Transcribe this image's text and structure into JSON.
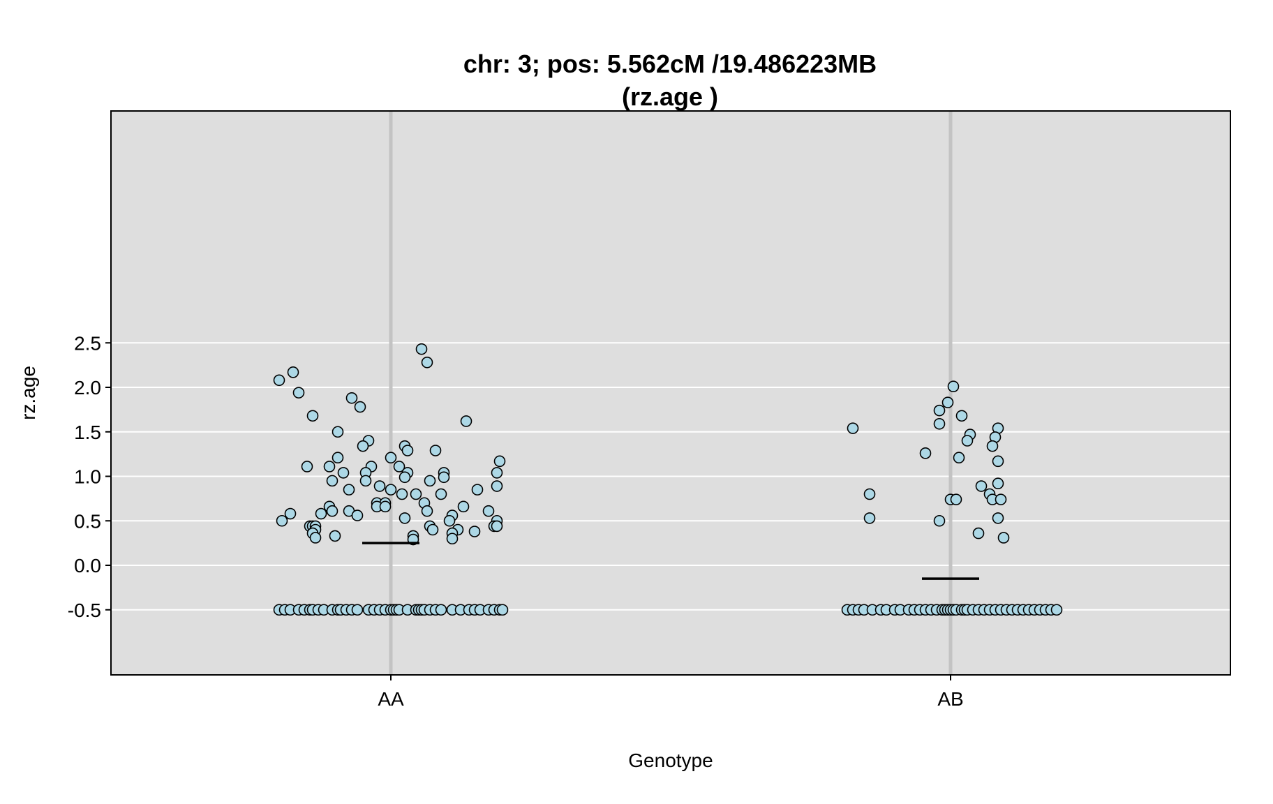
{
  "chart_data": {
    "type": "scatter",
    "title_line1": "chr: 3; pos: 5.562cM /19.486223MB",
    "title_line2": "(rz.age )",
    "xlabel": "Genotype",
    "ylabel": "rz.age",
    "ylim": [
      -0.62,
      2.55
    ],
    "yticks": [
      -0.5,
      0.0,
      0.5,
      1.0,
      1.5,
      2.0,
      2.5
    ],
    "ytick_labels": [
      "-0.5",
      "0.0",
      "0.5",
      "1.0",
      "1.5",
      "2.0",
      "2.5"
    ],
    "categories": [
      "AA",
      "AB"
    ],
    "grid": true,
    "colors": {
      "point_fill": "#add8e6",
      "panel_bg": "#dedede"
    },
    "series": [
      {
        "category": "AA",
        "mean": 0.25,
        "points": [
          [
            -0.4,
            2.08
          ],
          [
            -0.35,
            2.17
          ],
          [
            -0.33,
            1.94
          ],
          [
            -0.28,
            1.68
          ],
          [
            -0.14,
            1.88
          ],
          [
            -0.11,
            1.78
          ],
          [
            0.11,
            2.43
          ],
          [
            0.13,
            2.28
          ],
          [
            0.27,
            1.62
          ],
          [
            -0.19,
            1.5
          ],
          [
            -0.08,
            1.4
          ],
          [
            -0.1,
            1.34
          ],
          [
            0.05,
            1.34
          ],
          [
            0.06,
            1.29
          ],
          [
            0.16,
            1.29
          ],
          [
            -0.3,
            1.11
          ],
          [
            -0.22,
            1.11
          ],
          [
            -0.07,
            1.11
          ],
          [
            0.03,
            1.11
          ],
          [
            0.0,
            1.21
          ],
          [
            -0.19,
            1.21
          ],
          [
            -0.17,
            1.04
          ],
          [
            -0.09,
            1.04
          ],
          [
            0.06,
            1.04
          ],
          [
            0.19,
            1.04
          ],
          [
            0.19,
            0.99
          ],
          [
            0.05,
            0.99
          ],
          [
            0.39,
            1.17
          ],
          [
            0.38,
            1.04
          ],
          [
            -0.21,
            0.95
          ],
          [
            -0.09,
            0.95
          ],
          [
            0.14,
            0.95
          ],
          [
            0.31,
            0.85
          ],
          [
            -0.15,
            0.85
          ],
          [
            0.0,
            0.85
          ],
          [
            -0.04,
            0.89
          ],
          [
            0.38,
            0.89
          ],
          [
            0.04,
            0.8
          ],
          [
            0.09,
            0.8
          ],
          [
            0.18,
            0.8
          ],
          [
            -0.05,
            0.7
          ],
          [
            -0.02,
            0.7
          ],
          [
            0.12,
            0.7
          ],
          [
            -0.22,
            0.66
          ],
          [
            -0.05,
            0.66
          ],
          [
            -0.02,
            0.66
          ],
          [
            0.26,
            0.66
          ],
          [
            -0.21,
            0.61
          ],
          [
            -0.15,
            0.61
          ],
          [
            0.13,
            0.61
          ],
          [
            0.35,
            0.61
          ],
          [
            -0.36,
            0.58
          ],
          [
            -0.25,
            0.58
          ],
          [
            -0.12,
            0.56
          ],
          [
            0.22,
            0.56
          ],
          [
            -0.39,
            0.5
          ],
          [
            0.05,
            0.53
          ],
          [
            0.21,
            0.5
          ],
          [
            0.38,
            0.5
          ],
          [
            -0.29,
            0.44
          ],
          [
            -0.28,
            0.44
          ],
          [
            -0.27,
            0.44
          ],
          [
            0.14,
            0.44
          ],
          [
            0.37,
            0.44
          ],
          [
            0.38,
            0.44
          ],
          [
            -0.27,
            0.4
          ],
          [
            0.15,
            0.4
          ],
          [
            0.24,
            0.4
          ],
          [
            -0.28,
            0.36
          ],
          [
            0.22,
            0.36
          ],
          [
            0.3,
            0.38
          ],
          [
            -0.2,
            0.33
          ],
          [
            0.08,
            0.33
          ],
          [
            -0.27,
            0.31
          ],
          [
            0.22,
            0.3
          ],
          [
            0.08,
            0.29
          ],
          [
            -0.4,
            -0.5
          ],
          [
            -0.38,
            -0.5
          ],
          [
            -0.36,
            -0.5
          ],
          [
            -0.33,
            -0.5
          ],
          [
            -0.31,
            -0.5
          ],
          [
            -0.29,
            -0.5
          ],
          [
            -0.28,
            -0.5
          ],
          [
            -0.26,
            -0.5
          ],
          [
            -0.24,
            -0.5
          ],
          [
            -0.21,
            -0.5
          ],
          [
            -0.19,
            -0.5
          ],
          [
            -0.18,
            -0.5
          ],
          [
            -0.16,
            -0.5
          ],
          [
            -0.14,
            -0.5
          ],
          [
            -0.12,
            -0.5
          ],
          [
            -0.08,
            -0.5
          ],
          [
            -0.06,
            -0.5
          ],
          [
            -0.04,
            -0.5
          ],
          [
            -0.02,
            -0.5
          ],
          [
            0.0,
            -0.5
          ],
          [
            0.01,
            -0.5
          ],
          [
            0.02,
            -0.5
          ],
          [
            0.03,
            -0.5
          ],
          [
            0.06,
            -0.5
          ],
          [
            0.09,
            -0.5
          ],
          [
            0.1,
            -0.5
          ],
          [
            0.11,
            -0.5
          ],
          [
            0.12,
            -0.5
          ],
          [
            0.14,
            -0.5
          ],
          [
            0.16,
            -0.5
          ],
          [
            0.18,
            -0.5
          ],
          [
            0.22,
            -0.5
          ],
          [
            0.25,
            -0.5
          ],
          [
            0.28,
            -0.5
          ],
          [
            0.3,
            -0.5
          ],
          [
            0.32,
            -0.5
          ],
          [
            0.35,
            -0.5
          ],
          [
            0.37,
            -0.5
          ],
          [
            0.39,
            -0.5
          ],
          [
            0.4,
            -0.5
          ]
        ]
      },
      {
        "category": "AB",
        "mean": -0.15,
        "points": [
          [
            0.01,
            2.01
          ],
          [
            -0.01,
            1.83
          ],
          [
            -0.04,
            1.74
          ],
          [
            0.04,
            1.68
          ],
          [
            -0.04,
            1.59
          ],
          [
            -0.35,
            1.54
          ],
          [
            0.17,
            1.54
          ],
          [
            0.07,
            1.47
          ],
          [
            0.06,
            1.4
          ],
          [
            0.16,
            1.44
          ],
          [
            0.15,
            1.34
          ],
          [
            -0.09,
            1.26
          ],
          [
            0.03,
            1.21
          ],
          [
            0.17,
            1.17
          ],
          [
            0.17,
            0.92
          ],
          [
            0.11,
            0.89
          ],
          [
            -0.29,
            0.8
          ],
          [
            0.14,
            0.8
          ],
          [
            0.0,
            0.74
          ],
          [
            0.02,
            0.74
          ],
          [
            0.15,
            0.74
          ],
          [
            0.18,
            0.74
          ],
          [
            -0.29,
            0.53
          ],
          [
            0.17,
            0.53
          ],
          [
            -0.04,
            0.5
          ],
          [
            0.1,
            0.36
          ],
          [
            0.19,
            0.31
          ],
          [
            -0.37,
            -0.5
          ],
          [
            -0.35,
            -0.5
          ],
          [
            -0.33,
            -0.5
          ],
          [
            -0.31,
            -0.5
          ],
          [
            -0.28,
            -0.5
          ],
          [
            -0.25,
            -0.5
          ],
          [
            -0.23,
            -0.5
          ],
          [
            -0.2,
            -0.5
          ],
          [
            -0.18,
            -0.5
          ],
          [
            -0.15,
            -0.5
          ],
          [
            -0.13,
            -0.5
          ],
          [
            -0.11,
            -0.5
          ],
          [
            -0.09,
            -0.5
          ],
          [
            -0.07,
            -0.5
          ],
          [
            -0.05,
            -0.5
          ],
          [
            -0.03,
            -0.5
          ],
          [
            -0.02,
            -0.5
          ],
          [
            -0.01,
            -0.5
          ],
          [
            0.0,
            -0.5
          ],
          [
            0.01,
            -0.5
          ],
          [
            0.02,
            -0.5
          ],
          [
            0.04,
            -0.5
          ],
          [
            0.05,
            -0.5
          ],
          [
            0.06,
            -0.5
          ],
          [
            0.08,
            -0.5
          ],
          [
            0.1,
            -0.5
          ],
          [
            0.12,
            -0.5
          ],
          [
            0.14,
            -0.5
          ],
          [
            0.16,
            -0.5
          ],
          [
            0.18,
            -0.5
          ],
          [
            0.2,
            -0.5
          ],
          [
            0.22,
            -0.5
          ],
          [
            0.24,
            -0.5
          ],
          [
            0.26,
            -0.5
          ],
          [
            0.28,
            -0.5
          ],
          [
            0.3,
            -0.5
          ],
          [
            0.32,
            -0.5
          ],
          [
            0.34,
            -0.5
          ],
          [
            0.36,
            -0.5
          ],
          [
            0.38,
            -0.5
          ]
        ]
      }
    ]
  }
}
